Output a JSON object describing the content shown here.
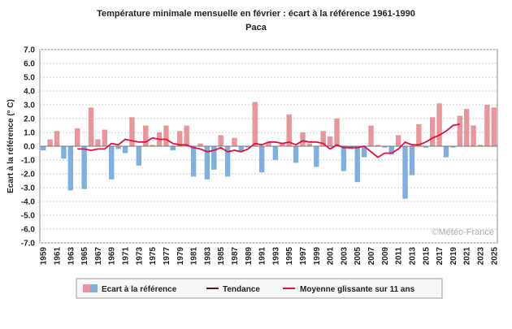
{
  "chart_data": {
    "type": "bar",
    "title": "Température minimale mensuelle en février : écart à la référence 1961-1990",
    "subtitle": "Paca",
    "ylabel": "Ecart à la référence (° C)",
    "xlabel": "",
    "ylim": [
      -7,
      7
    ],
    "yticks": [
      "7.0",
      "6.0",
      "5.0",
      "4.0",
      "3.0",
      "2.0",
      "1.0",
      "0.0",
      "-1.0",
      "-2.0",
      "-3.0",
      "-4.0",
      "-5.0",
      "-6.0",
      "-7.0"
    ],
    "grid": true,
    "watermark": "©Météo-France",
    "colors": {
      "positive": "#e8959b",
      "negative": "#7faee0",
      "trend": "#6b1010",
      "moving_average": "#e0103c"
    },
    "years": [
      1959,
      1960,
      1961,
      1962,
      1963,
      1964,
      1965,
      1966,
      1967,
      1968,
      1969,
      1970,
      1971,
      1972,
      1973,
      1974,
      1975,
      1976,
      1977,
      1978,
      1979,
      1980,
      1981,
      1982,
      1983,
      1984,
      1985,
      1986,
      1987,
      1988,
      1989,
      1990,
      1991,
      1992,
      1993,
      1994,
      1995,
      1996,
      1997,
      1998,
      1999,
      2000,
      2001,
      2002,
      2003,
      2004,
      2005,
      2006,
      2007,
      2008,
      2009,
      2010,
      2011,
      2012,
      2013,
      2014,
      2015,
      2016,
      2017,
      2018,
      2019,
      2020,
      2021,
      2022,
      2023,
      2024,
      2025
    ],
    "x_tick_labels": [
      "1959",
      "1961",
      "1963",
      "1965",
      "1967",
      "1969",
      "1971",
      "1973",
      "1975",
      "1977",
      "1979",
      "1981",
      "1983",
      "1985",
      "1987",
      "1989",
      "1991",
      "1993",
      "1995",
      "1997",
      "1999",
      "2001",
      "2003",
      "2005",
      "2007",
      "2009",
      "2011",
      "2013",
      "2015",
      "2017",
      "2019",
      "2021",
      "2023",
      "2025"
    ],
    "series": [
      {
        "name": "Ecart à la référence",
        "type": "bar",
        "values": [
          -0.3,
          0.5,
          1.1,
          -0.9,
          -3.2,
          1.3,
          -3.1,
          2.8,
          0.5,
          1.2,
          -2.4,
          -0.2,
          -0.5,
          2.1,
          -1.4,
          1.5,
          0.1,
          1.0,
          1.5,
          -0.3,
          1.1,
          1.5,
          -2.2,
          0.2,
          -2.4,
          -1.7,
          0.8,
          -2.2,
          0.6,
          -0.4,
          -0.1,
          3.2,
          -1.9,
          0.3,
          -1.0,
          0.2,
          2.3,
          -1.2,
          1.0,
          0.2,
          -1.5,
          1.1,
          0.7,
          2.0,
          -1.8,
          -0.2,
          -2.6,
          -0.8,
          1.5,
          0.1,
          -0.1,
          -0.6,
          0.8,
          -3.8,
          -2.1,
          1.6,
          -0.1,
          2.1,
          3.1,
          -0.8,
          -0.1,
          2.2,
          2.7,
          1.5,
          0.1,
          3.0,
          2.8
        ]
      },
      {
        "name": "Tendance",
        "type": "line",
        "values": []
      },
      {
        "name": "Moyenne glissante sur 11 ans",
        "type": "line",
        "x": [
          1964,
          1965,
          1966,
          1967,
          1968,
          1969,
          1970,
          1971,
          1972,
          1973,
          1974,
          1975,
          1976,
          1977,
          1978,
          1979,
          1980,
          1981,
          1982,
          1983,
          1984,
          1985,
          1986,
          1987,
          1988,
          1989,
          1990,
          1991,
          1992,
          1993,
          1994,
          1995,
          1996,
          1997,
          1998,
          1999,
          2000,
          2001,
          2002,
          2003,
          2004,
          2005,
          2006,
          2007,
          2008,
          2009,
          2010,
          2011,
          2012,
          2013,
          2014,
          2015,
          2016,
          2017,
          2018,
          2019,
          2020
        ],
        "values": [
          -0.2,
          -0.2,
          -0.3,
          -0.2,
          -0.2,
          0.2,
          0.1,
          0.5,
          0.4,
          0.3,
          0.3,
          0.6,
          0.5,
          0.5,
          0.2,
          0.1,
          0.1,
          -0.1,
          -0.2,
          -0.4,
          -0.3,
          -0.1,
          -0.4,
          -0.3,
          -0.4,
          -0.2,
          0.2,
          0.1,
          0.3,
          0.3,
          0.2,
          0.3,
          0.1,
          0.4,
          0.3,
          0.3,
          0.2,
          -0.2,
          0.1,
          -0.1,
          -0.1,
          -0.1,
          0.0,
          -0.4,
          -0.8,
          -0.5,
          -0.5,
          -0.2,
          0.3,
          0.1,
          0.1,
          0.3,
          0.6,
          0.8,
          1.1,
          1.5,
          1.6
        ]
      }
    ]
  }
}
